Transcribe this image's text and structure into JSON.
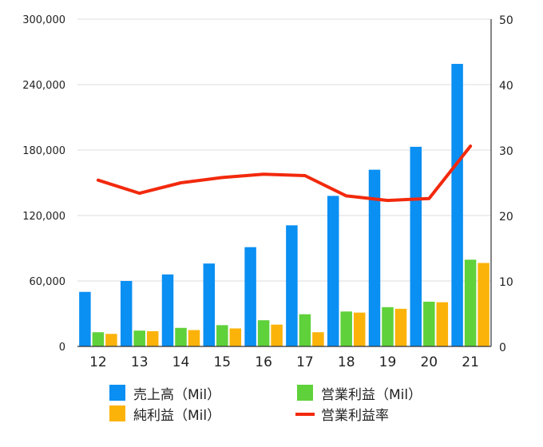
{
  "chart_data": {
    "type": "bar",
    "categories": [
      "12",
      "13",
      "14",
      "15",
      "16",
      "17",
      "18",
      "19",
      "20",
      "21"
    ],
    "series": [
      {
        "name": "売上高（Mil）",
        "axis": "left",
        "kind": "bar",
        "color": "#0a8ff2",
        "values": [
          50000,
          60000,
          66000,
          76000,
          91000,
          111000,
          138000,
          162000,
          183000,
          259000
        ]
      },
      {
        "name": "営業利益（Mil）",
        "axis": "left",
        "kind": "bar",
        "color": "#5fd13a",
        "values": [
          13000,
          14500,
          17000,
          19500,
          24000,
          29500,
          32000,
          36000,
          41000,
          79500
        ]
      },
      {
        "name": "純利益（Mil）",
        "axis": "left",
        "kind": "bar",
        "color": "#fbb30a",
        "values": [
          11500,
          14000,
          15000,
          16500,
          20000,
          13000,
          31000,
          34500,
          40500,
          76500
        ]
      },
      {
        "name": "営業利益率",
        "axis": "right",
        "kind": "line",
        "color": "#f2290d",
        "values": [
          25.4,
          23.4,
          25.0,
          25.8,
          26.3,
          26.1,
          23.0,
          22.3,
          22.6,
          30.6
        ]
      }
    ],
    "y_left": {
      "min": 0,
      "max": 300000,
      "ticks": [
        "0",
        "60,000",
        "120,000",
        "180,000",
        "240,000",
        "300,000"
      ]
    },
    "y_right": {
      "min": 0,
      "max": 50,
      "ticks": [
        "0",
        "10",
        "20",
        "30",
        "40",
        "50"
      ]
    },
    "grid": "horizontal",
    "legend_position": "bottom"
  }
}
